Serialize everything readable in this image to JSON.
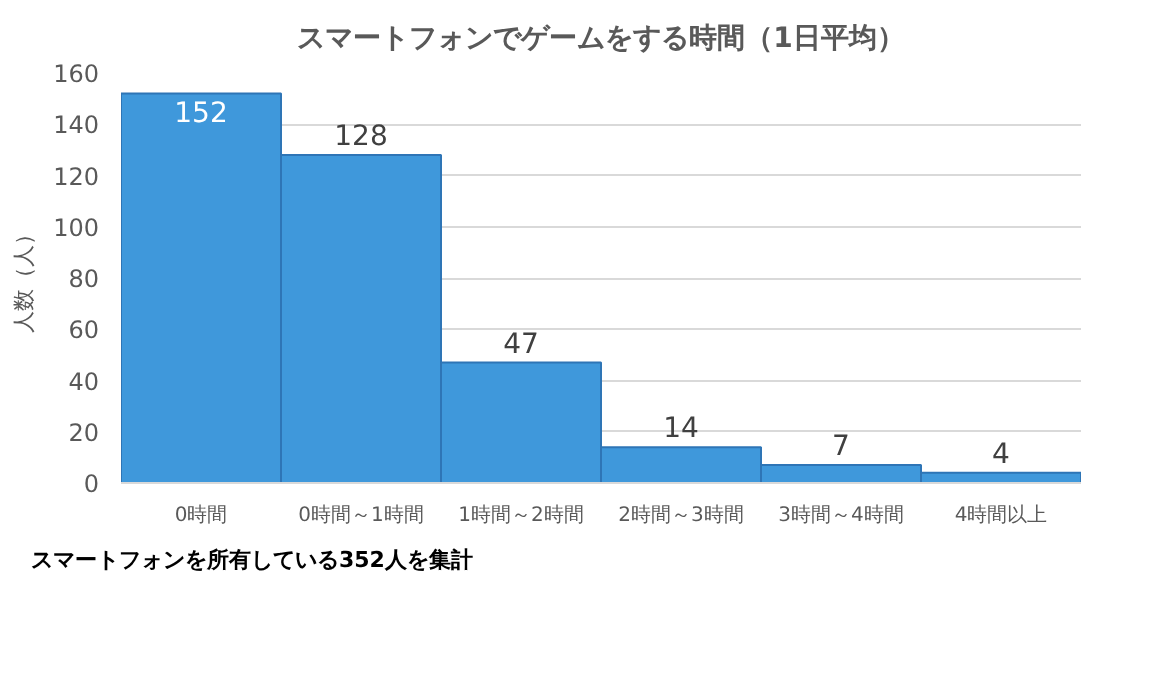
{
  "chart_data": {
    "type": "bar",
    "title": "スマートフォンでゲームをする時間（1日平均）",
    "ylabel": "人数（人）",
    "categories": [
      "0時間",
      "0時間～1時間",
      "1時間～2時間",
      "2時間～3時間",
      "3時間～4時間",
      "4時間以上"
    ],
    "values": [
      152,
      128,
      47,
      14,
      7,
      4
    ],
    "color": "#3f98db",
    "ylim": [
      0,
      160
    ],
    "yticks": [
      0,
      20,
      40,
      60,
      80,
      100,
      120,
      140,
      160
    ],
    "grid": "y",
    "data_labels": true,
    "annotations": [
      "スマートフォンを所有している352人を集計"
    ]
  }
}
